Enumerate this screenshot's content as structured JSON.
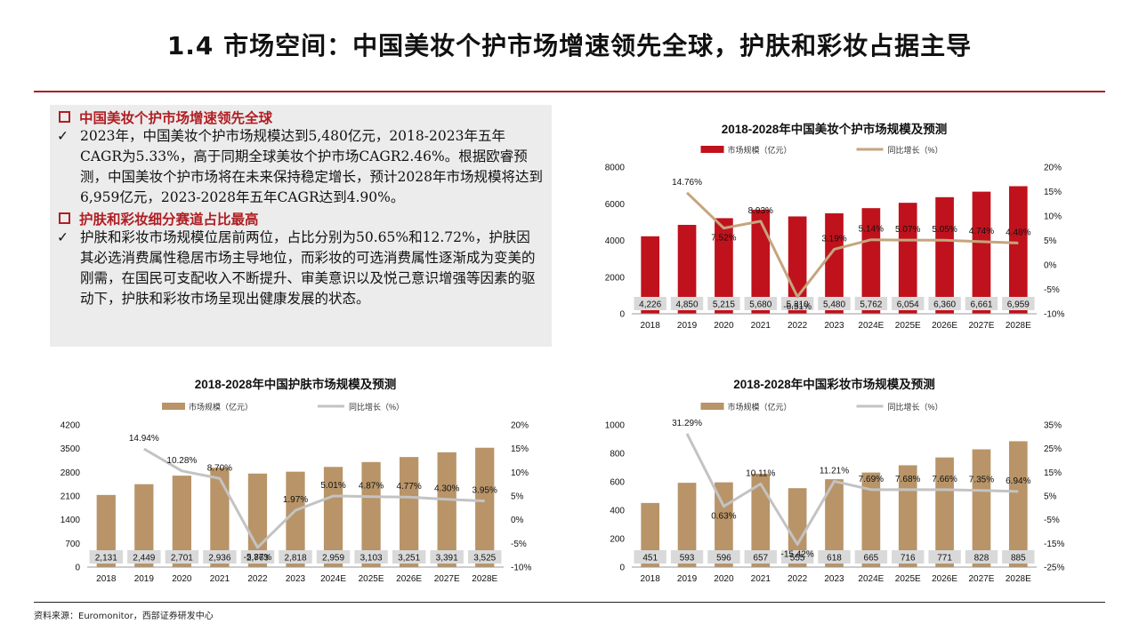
{
  "page": {
    "title": "1.4 市场空间：中国美妆个护市场增速领先全球，护肤和彩妆占据主导",
    "source": "资料来源：Euromonitor，西部证券研发中心"
  },
  "textbox": {
    "section1_heading": "中国美妆个护市场增速领先全球",
    "section1_body": "2023年，中国美妆个护市场规模达到5,480亿元，2018-2023年五年CAGR为5.33%，高于同期全球美妆个护市场CAGR2.46%。根据欧睿预测，中国美妆个护市场将在未来保持稳定增长，预计2028年市场规模将达到6,959亿元，2023-2028年五年CAGR达到4.90%。",
    "section2_heading": "护肤和彩妆细分赛道占比最高",
    "section2_body": "护肤和彩妆市场规模位居前两位，占比分别为50.65%和12.72%，护肤因其必选消费属性稳居市场主导地位，而彩妆的可选消费属性逐渐成为变美的刚需，在国民可支配收入不断提升、审美意识以及悦己意识增强等因素的驱动下，护肤和彩妆市场呈现出健康发展的状态。",
    "check_glyph": "✓"
  },
  "colors": {
    "accent": "#b01e23",
    "bar_red": "#c0121c",
    "bar_tan": "#b89468",
    "line_tan": "#c5a57e",
    "line_grey": "#c3c3c3",
    "label_box": "#d9d9d9"
  },
  "chart_data": [
    {
      "type": "bar",
      "title": "2018-2028年中国美妆个护市场规模及预测",
      "categories": [
        "2018",
        "2019",
        "2020",
        "2021",
        "2022",
        "2023",
        "2024E",
        "2025E",
        "2026E",
        "2027E",
        "2028E"
      ],
      "series": [
        {
          "name": "市场规模（亿元）",
          "type": "bar",
          "axis": "left",
          "values": [
            4226,
            4850,
            5215,
            5680,
            5310,
            5480,
            5762,
            6054,
            6360,
            6661,
            6959
          ],
          "labels": [
            "4,226",
            "4,850",
            "5,215",
            "5,680",
            "5,310",
            "5,480",
            "5,762",
            "6,054",
            "6,360",
            "6,661",
            "6,959"
          ]
        },
        {
          "name": "同比增长（%）",
          "type": "line",
          "axis": "right",
          "values": [
            null,
            14.76,
            7.52,
            8.93,
            -6.51,
            3.19,
            5.14,
            5.07,
            5.05,
            4.74,
            4.48
          ],
          "labels": [
            "",
            "14.76%",
            "7.52%",
            "8.93%",
            "-6.51%",
            "3.19%",
            "5.14%",
            "5.07%",
            "5.05%",
            "4.74%",
            "4.48%"
          ]
        }
      ],
      "ylim": [
        0,
        8000
      ],
      "yticks": [
        0,
        2000,
        4000,
        6000,
        8000
      ],
      "yticklabels": [
        "0",
        "2000",
        "4000",
        "6000",
        "8000"
      ],
      "y2lim": [
        -10,
        20
      ],
      "y2ticks": [
        -10,
        -5,
        0,
        5,
        10,
        15,
        20
      ],
      "y2ticklabels": [
        "-10%",
        "-5%",
        "0%",
        "5%",
        "10%",
        "15%",
        "20%"
      ],
      "legend": "top-center",
      "grid": false
    },
    {
      "type": "bar",
      "title": "2018-2028年中国护肤市场规模及预测",
      "categories": [
        "2018",
        "2019",
        "2020",
        "2021",
        "2022",
        "2023",
        "2024E",
        "2025E",
        "2026E",
        "2027E",
        "2028E"
      ],
      "series": [
        {
          "name": "市场规模（亿元）",
          "type": "bar",
          "axis": "left",
          "values": [
            2131,
            2449,
            2701,
            2936,
            2763,
            2818,
            2959,
            3103,
            3251,
            3391,
            3525
          ],
          "labels": [
            "2,131",
            "2,449",
            "2,701",
            "2,936",
            "2,763",
            "2,818",
            "2,959",
            "3,103",
            "3,251",
            "3,391",
            "3,525"
          ]
        },
        {
          "name": "同比增长（%）",
          "type": "line",
          "axis": "right",
          "values": [
            null,
            14.94,
            10.28,
            8.7,
            -5.87,
            1.97,
            5.01,
            4.87,
            4.77,
            4.3,
            3.95
          ],
          "labels": [
            "",
            "14.94%",
            "10.28%",
            "8.70%",
            "-5.87%",
            "1.97%",
            "5.01%",
            "4.87%",
            "4.77%",
            "4.30%",
            "3.95%"
          ]
        }
      ],
      "ylim": [
        0,
        4200
      ],
      "yticks": [
        0,
        700,
        1400,
        2100,
        2800,
        3500,
        4200
      ],
      "yticklabels": [
        "0",
        "700",
        "1400",
        "2100",
        "2800",
        "3500",
        "4200"
      ],
      "y2lim": [
        -10,
        20
      ],
      "y2ticks": [
        -10,
        -5,
        0,
        5,
        10,
        15,
        20
      ],
      "y2ticklabels": [
        "-10%",
        "-5%",
        "0%",
        "5%",
        "10%",
        "15%",
        "20%"
      ],
      "legend": "top-center",
      "grid": false
    },
    {
      "type": "bar",
      "title": "2018-2028年中国彩妆市场规模及预测",
      "categories": [
        "2018",
        "2019",
        "2020",
        "2021",
        "2022",
        "2023",
        "2024E",
        "2025E",
        "2026E",
        "2027E",
        "2028E"
      ],
      "series": [
        {
          "name": "市场规模（亿元）",
          "type": "bar",
          "axis": "left",
          "values": [
            451,
            593,
            596,
            657,
            555,
            618,
            665,
            716,
            771,
            828,
            885
          ],
          "labels": [
            "451",
            "593",
            "596",
            "657",
            "555",
            "618",
            "665",
            "716",
            "771",
            "828",
            "885"
          ]
        },
        {
          "name": "同比增长（%）",
          "type": "line",
          "axis": "right",
          "values": [
            null,
            31.29,
            0.63,
            10.11,
            -15.42,
            11.21,
            7.69,
            7.68,
            7.66,
            7.35,
            6.94
          ],
          "labels": [
            "",
            "31.29%",
            "0.63%",
            "10.11%",
            "-15.42%",
            "11.21%",
            "7.69%",
            "7.68%",
            "7.66%",
            "7.35%",
            "6.94%"
          ]
        }
      ],
      "ylim": [
        0,
        1000
      ],
      "yticks": [
        0,
        200,
        400,
        600,
        800,
        1000
      ],
      "yticklabels": [
        "0",
        "200",
        "400",
        "600",
        "800",
        "1000"
      ],
      "y2lim": [
        -25,
        35
      ],
      "y2ticks": [
        -25,
        -15,
        -5,
        5,
        15,
        25,
        35
      ],
      "y2ticklabels": [
        "-25%",
        "-15%",
        "-5%",
        "5%",
        "15%",
        "25%",
        "35%"
      ],
      "legend": "top-center",
      "grid": false
    }
  ]
}
